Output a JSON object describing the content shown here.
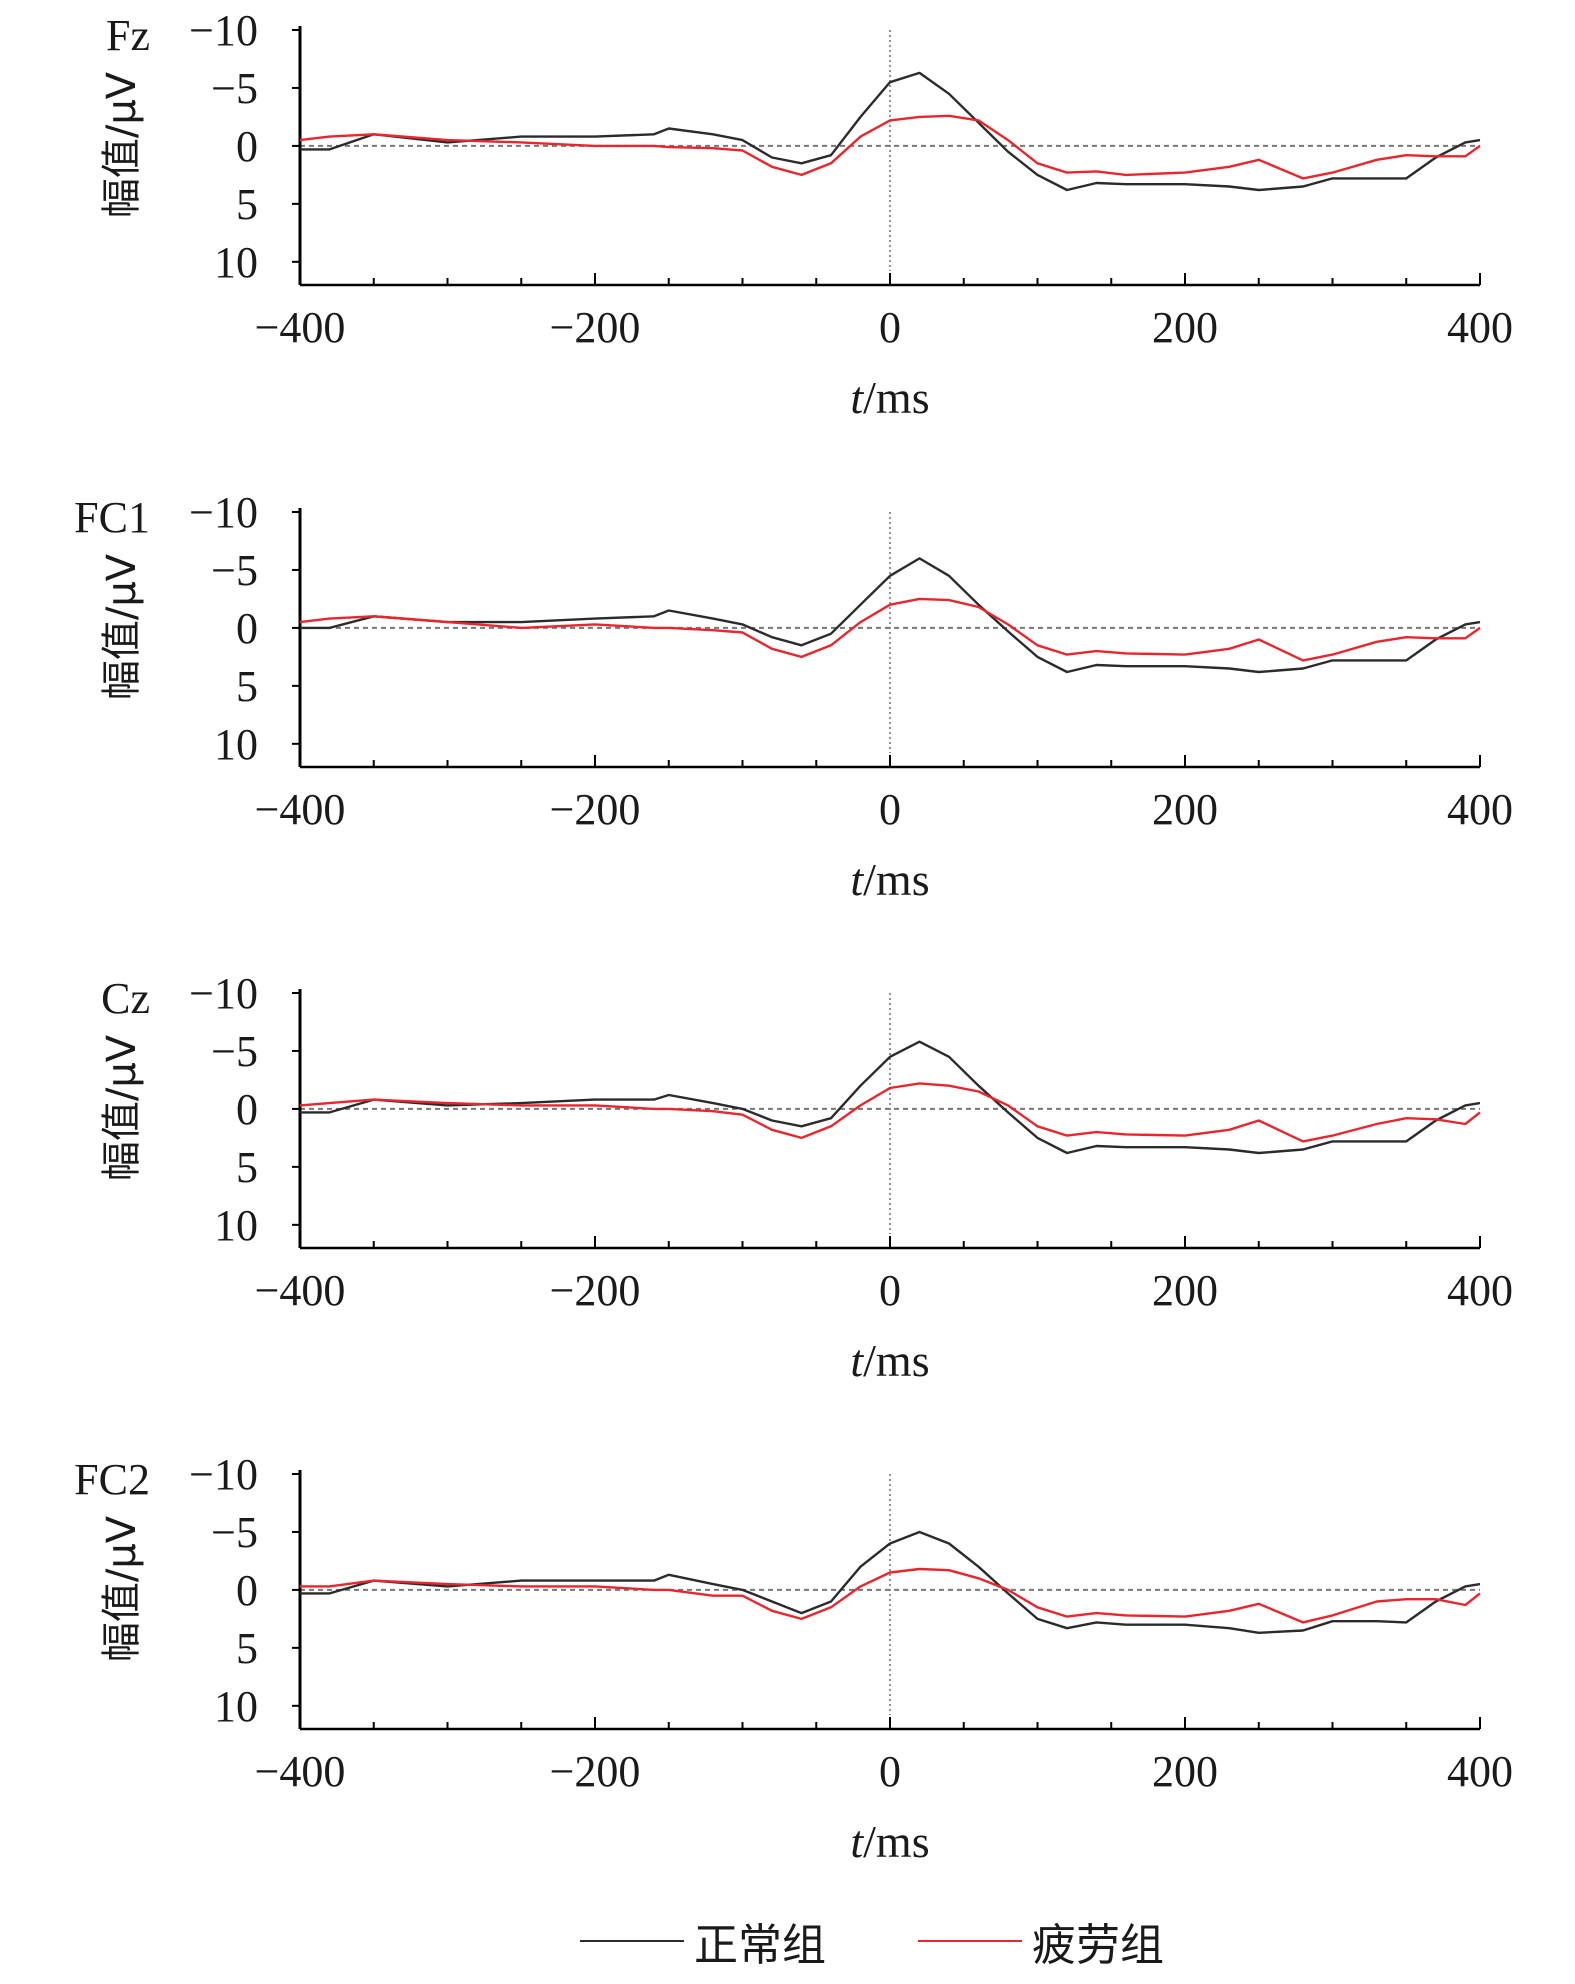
{
  "legend": {
    "normal": {
      "label": "正常组",
      "color": "#2b2b2b"
    },
    "fatigue": {
      "label": "疲劳组",
      "color": "#e8262d"
    }
  },
  "chart_data": [
    {
      "type": "line",
      "title": "Fz",
      "xlabel": "t/ms",
      "ylabel": "幅值/μV",
      "xlim": [
        -400,
        400
      ],
      "ylim": [
        -10,
        12
      ],
      "y_inverted": true,
      "xticks": [
        "−400",
        "−200",
        "0",
        "200",
        "400"
      ],
      "yticks": [
        "−10",
        "−5",
        "0",
        "5",
        "10"
      ],
      "x": [
        -400,
        -380,
        -350,
        -300,
        -250,
        -200,
        -160,
        -150,
        -120,
        -100,
        -80,
        -60,
        -40,
        -20,
        0,
        20,
        40,
        60,
        80,
        100,
        120,
        140,
        160,
        200,
        230,
        250,
        280,
        300,
        330,
        350,
        370,
        390,
        400
      ],
      "series": [
        {
          "name": "正常组",
          "values": [
            0.3,
            0.3,
            -1.0,
            -0.3,
            -0.8,
            -0.8,
            -1.0,
            -1.5,
            -1.0,
            -0.5,
            1.0,
            1.5,
            0.8,
            -2.5,
            -5.5,
            -6.3,
            -4.5,
            -2.0,
            0.5,
            2.5,
            3.8,
            3.2,
            3.3,
            3.3,
            3.5,
            3.8,
            3.5,
            2.8,
            2.8,
            2.8,
            1.0,
            -0.3,
            -0.5
          ]
        },
        {
          "name": "疲劳组",
          "values": [
            -0.5,
            -0.8,
            -1.0,
            -0.5,
            -0.3,
            0.0,
            0.0,
            0.1,
            0.2,
            0.4,
            1.8,
            2.5,
            1.5,
            -0.8,
            -2.2,
            -2.5,
            -2.6,
            -2.2,
            -0.5,
            1.5,
            2.3,
            2.2,
            2.5,
            2.3,
            1.8,
            1.2,
            2.8,
            2.3,
            1.2,
            0.8,
            0.9,
            0.9,
            0.0
          ]
        }
      ]
    },
    {
      "type": "line",
      "title": "FC1",
      "xlabel": "t/ms",
      "ylabel": "幅值/μV",
      "xlim": [
        -400,
        400
      ],
      "ylim": [
        -10,
        12
      ],
      "y_inverted": true,
      "xticks": [
        "−400",
        "−200",
        "0",
        "200",
        "400"
      ],
      "yticks": [
        "−10",
        "−5",
        "0",
        "5",
        "10"
      ],
      "x": [
        -400,
        -380,
        -350,
        -300,
        -250,
        -200,
        -160,
        -150,
        -120,
        -100,
        -80,
        -60,
        -40,
        -20,
        0,
        20,
        40,
        60,
        80,
        100,
        120,
        140,
        160,
        200,
        230,
        250,
        280,
        300,
        330,
        350,
        370,
        390,
        400
      ],
      "series": [
        {
          "name": "正常组",
          "values": [
            0.0,
            0.0,
            -1.0,
            -0.5,
            -0.5,
            -0.8,
            -1.0,
            -1.5,
            -0.8,
            -0.3,
            0.8,
            1.5,
            0.5,
            -2.0,
            -4.5,
            -6.0,
            -4.5,
            -2.0,
            0.3,
            2.5,
            3.8,
            3.2,
            3.3,
            3.3,
            3.5,
            3.8,
            3.5,
            2.8,
            2.8,
            2.8,
            1.0,
            -0.3,
            -0.5
          ]
        },
        {
          "name": "疲劳组",
          "values": [
            -0.5,
            -0.8,
            -1.0,
            -0.5,
            0.0,
            -0.3,
            0.0,
            0.0,
            0.2,
            0.4,
            1.8,
            2.5,
            1.5,
            -0.5,
            -2.0,
            -2.5,
            -2.4,
            -1.8,
            -0.3,
            1.5,
            2.3,
            2.0,
            2.2,
            2.3,
            1.8,
            1.0,
            2.8,
            2.3,
            1.2,
            0.8,
            0.9,
            0.9,
            0.0
          ]
        }
      ]
    },
    {
      "type": "line",
      "title": "Cz",
      "xlabel": "t/ms",
      "ylabel": "幅值/μV",
      "xlim": [
        -400,
        400
      ],
      "ylim": [
        -10,
        12
      ],
      "y_inverted": true,
      "xticks": [
        "−400",
        "−200",
        "0",
        "200",
        "400"
      ],
      "yticks": [
        "−10",
        "−5",
        "0",
        "5",
        "10"
      ],
      "x": [
        -400,
        -380,
        -350,
        -300,
        -250,
        -200,
        -160,
        -150,
        -120,
        -100,
        -80,
        -60,
        -40,
        -20,
        0,
        20,
        40,
        60,
        80,
        100,
        120,
        140,
        160,
        200,
        230,
        250,
        280,
        300,
        330,
        350,
        370,
        390,
        400
      ],
      "series": [
        {
          "name": "正常组",
          "values": [
            0.3,
            0.3,
            -0.8,
            -0.3,
            -0.5,
            -0.8,
            -0.8,
            -1.2,
            -0.5,
            0.0,
            1.0,
            1.5,
            0.8,
            -2.0,
            -4.5,
            -5.8,
            -4.5,
            -2.0,
            0.3,
            2.5,
            3.8,
            3.2,
            3.3,
            3.3,
            3.5,
            3.8,
            3.5,
            2.8,
            2.8,
            2.8,
            1.0,
            -0.3,
            -0.5
          ]
        },
        {
          "name": "疲劳组",
          "values": [
            -0.3,
            -0.5,
            -0.8,
            -0.5,
            -0.3,
            -0.3,
            0.0,
            0.0,
            0.2,
            0.5,
            1.8,
            2.5,
            1.5,
            -0.3,
            -1.8,
            -2.2,
            -2.0,
            -1.5,
            -0.3,
            1.5,
            2.3,
            2.0,
            2.2,
            2.3,
            1.8,
            1.0,
            2.8,
            2.3,
            1.3,
            0.8,
            0.9,
            1.3,
            0.3
          ]
        }
      ]
    },
    {
      "type": "line",
      "title": "FC2",
      "xlabel": "t/ms",
      "ylabel": "幅值/μV",
      "xlim": [
        -400,
        400
      ],
      "ylim": [
        -10,
        12
      ],
      "y_inverted": true,
      "xticks": [
        "−400",
        "−200",
        "0",
        "200",
        "400"
      ],
      "yticks": [
        "−10",
        "−5",
        "0",
        "5",
        "10"
      ],
      "x": [
        -400,
        -380,
        -350,
        -300,
        -250,
        -200,
        -160,
        -150,
        -120,
        -100,
        -80,
        -60,
        -40,
        -20,
        0,
        20,
        40,
        60,
        80,
        100,
        120,
        140,
        160,
        200,
        230,
        250,
        280,
        300,
        330,
        350,
        370,
        390,
        400
      ],
      "series": [
        {
          "name": "正常组",
          "values": [
            0.3,
            0.3,
            -0.8,
            -0.3,
            -0.8,
            -0.8,
            -0.8,
            -1.3,
            -0.5,
            0.0,
            1.0,
            2.0,
            1.0,
            -2.0,
            -4.0,
            -5.0,
            -4.0,
            -2.0,
            0.3,
            2.5,
            3.3,
            2.8,
            3.0,
            3.0,
            3.3,
            3.7,
            3.5,
            2.7,
            2.7,
            2.8,
            1.0,
            -0.3,
            -0.5
          ]
        },
        {
          "name": "疲劳组",
          "values": [
            -0.3,
            -0.3,
            -0.8,
            -0.5,
            -0.3,
            -0.3,
            0.0,
            0.0,
            0.5,
            0.5,
            1.8,
            2.5,
            1.5,
            -0.3,
            -1.5,
            -1.8,
            -1.7,
            -1.0,
            0.0,
            1.5,
            2.3,
            2.0,
            2.2,
            2.3,
            1.8,
            1.2,
            2.8,
            2.2,
            1.0,
            0.8,
            0.8,
            1.3,
            0.3
          ]
        }
      ]
    }
  ]
}
